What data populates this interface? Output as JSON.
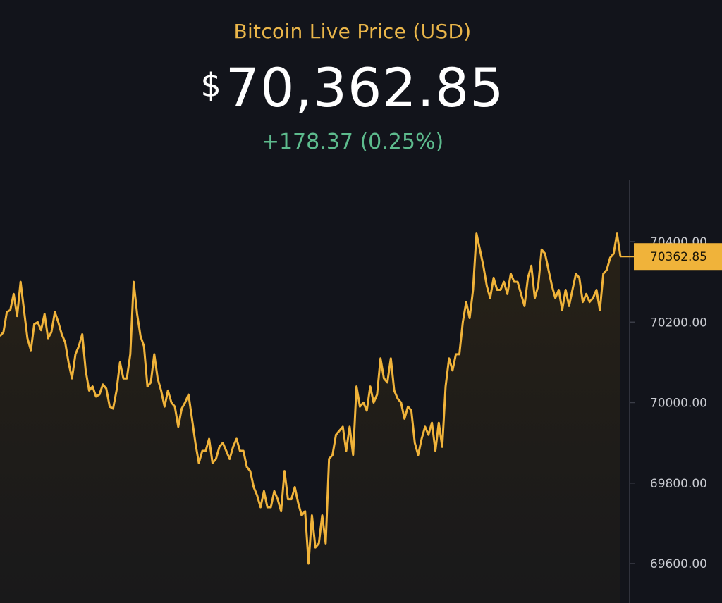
{
  "header": {
    "title": "Bitcoin Live Price (USD)",
    "currency_symbol": "$",
    "price": "70,362.85",
    "change": "+178.37 (0.25%)"
  },
  "colors": {
    "background": "#12141b",
    "line": "#f0b33a",
    "title": "#eab64a",
    "change_up": "#5dbb8d",
    "axis": "#3a3d47",
    "tick_text": "#c8cad0"
  },
  "chart_data": {
    "type": "line",
    "title": "",
    "xlabel": "",
    "ylabel": "",
    "ylim": [
      69540,
      70520
    ],
    "y_ticks": [
      69600,
      69800,
      70000,
      70200,
      70400
    ],
    "y_tick_labels": [
      "69600.00",
      "69800.00",
      "70000.00",
      "70200.00",
      "70400.00"
    ],
    "current_value": 70362.85,
    "current_label": "70362.85",
    "grid": false,
    "series": [
      {
        "values": [
          70165,
          70175,
          70225,
          70230,
          70270,
          70215,
          70300,
          70230,
          70160,
          70130,
          70195,
          70200,
          70180,
          70220,
          70160,
          70175,
          70225,
          70200,
          70170,
          70150,
          70100,
          70060,
          70120,
          70140,
          70170,
          70080,
          70030,
          70040,
          70015,
          70020,
          70045,
          70035,
          69990,
          69985,
          70030,
          70100,
          70060,
          70060,
          70120,
          70300,
          70220,
          70165,
          70140,
          70040,
          70050,
          70120,
          70060,
          70030,
          69990,
          70030,
          70000,
          69990,
          69940,
          69985,
          70000,
          70020,
          69960,
          69900,
          69850,
          69880,
          69880,
          69910,
          69850,
          69860,
          69890,
          69900,
          69880,
          69860,
          69890,
          69910,
          69880,
          69880,
          69840,
          69830,
          69790,
          69770,
          69740,
          69780,
          69740,
          69740,
          69780,
          69760,
          69730,
          69830,
          69760,
          69760,
          69790,
          69750,
          69720,
          69730,
          69600,
          69720,
          69640,
          69650,
          69720,
          69650,
          69860,
          69870,
          69920,
          69930,
          69940,
          69880,
          69940,
          69870,
          70040,
          69990,
          70000,
          69980,
          70040,
          70000,
          70020,
          70110,
          70060,
          70050,
          70110,
          70030,
          70010,
          70000,
          69960,
          69990,
          69980,
          69900,
          69870,
          69910,
          69940,
          69920,
          69950,
          69880,
          69950,
          69890,
          70040,
          70110,
          70080,
          70120,
          70120,
          70200,
          70250,
          70210,
          70280,
          70420,
          70380,
          70340,
          70290,
          70260,
          70310,
          70280,
          70280,
          70300,
          70270,
          70320,
          70300,
          70300,
          70270,
          70240,
          70310,
          70340,
          70260,
          70290,
          70380,
          70370,
          70330,
          70290,
          70260,
          70280,
          70230,
          70280,
          70240,
          70280,
          70320,
          70310,
          70250,
          70270,
          70250,
          70260,
          70280,
          70230,
          70320,
          70330,
          70360,
          70370,
          70420,
          70362.85
        ]
      }
    ]
  }
}
